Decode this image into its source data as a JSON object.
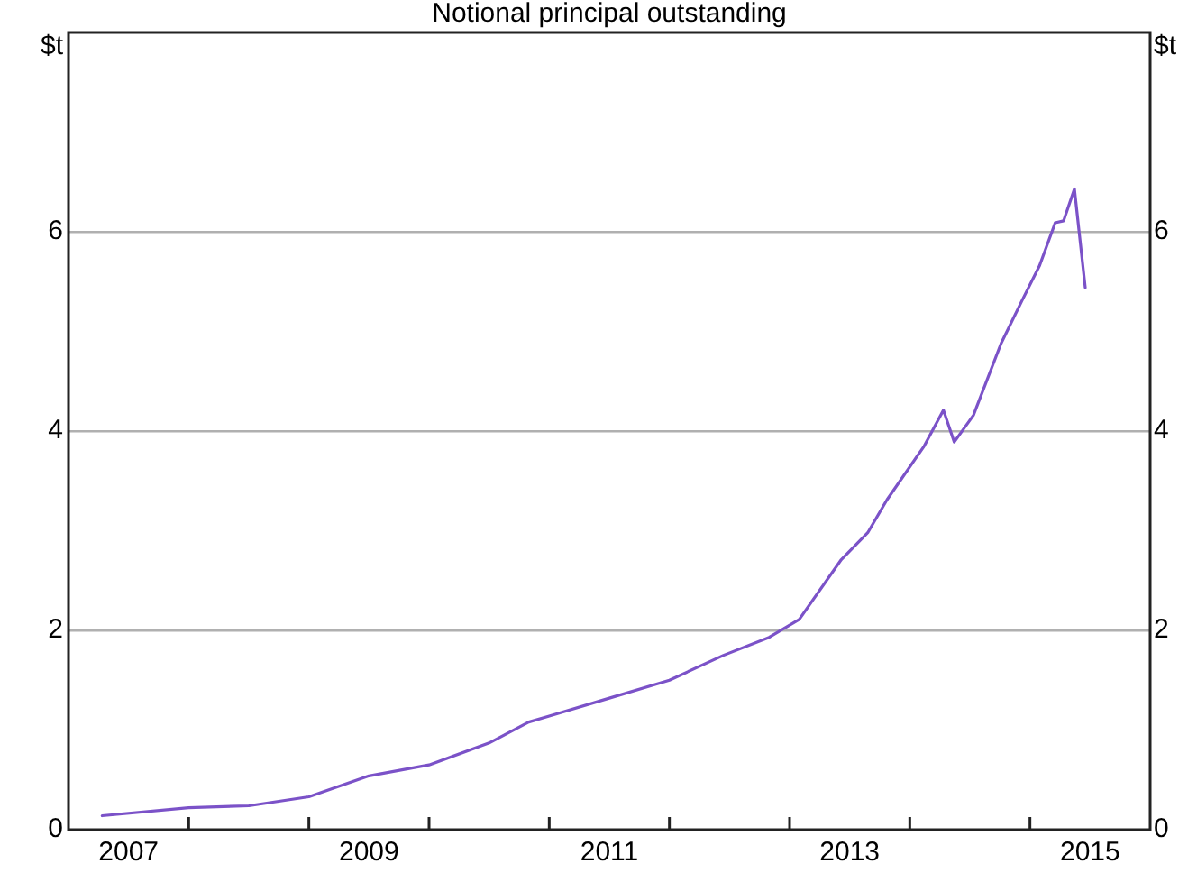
{
  "chart_data": {
    "type": "line",
    "title": "Notional principal outstanding",
    "ylabel": "$t",
    "y2label": "$t",
    "x": [
      2007.28,
      2008.0,
      2008.5,
      2009.0,
      2009.5,
      2010.0,
      2010.5,
      2010.83,
      2011.0,
      2011.5,
      2012.0,
      2012.45,
      2012.83,
      2013.08,
      2013.43,
      2013.65,
      2013.81,
      2014.12,
      2014.28,
      2014.37,
      2014.53,
      2014.76,
      2014.93,
      2015.08,
      2015.21,
      2015.28,
      2015.37,
      2015.46
    ],
    "series": [
      {
        "color": "#7b52c8",
        "values": [
          0.14,
          0.22,
          0.24,
          0.33,
          0.54,
          0.65,
          0.87,
          1.08,
          1.14,
          1.32,
          1.5,
          1.75,
          1.93,
          2.11,
          2.71,
          2.98,
          3.31,
          3.85,
          4.21,
          3.89,
          4.16,
          4.88,
          5.3,
          5.66,
          6.09,
          6.11,
          6.43,
          5.44
        ]
      }
    ],
    "xlim": [
      2007,
      2016
    ],
    "xticks": [
      {
        "value": 2007.5,
        "label": "2007"
      },
      {
        "value": 2008,
        "label": null
      },
      {
        "value": 2009,
        "label": null
      },
      {
        "value": 2009.5,
        "label": "2009"
      },
      {
        "value": 2010,
        "label": null
      },
      {
        "value": 2011,
        "label": null
      },
      {
        "value": 2011.5,
        "label": "2011"
      },
      {
        "value": 2012,
        "label": null
      },
      {
        "value": 2013,
        "label": null
      },
      {
        "value": 2013.5,
        "label": "2013"
      },
      {
        "value": 2014,
        "label": null
      },
      {
        "value": 2015,
        "label": null
      },
      {
        "value": 2015.5,
        "label": "2015"
      }
    ],
    "ylim": [
      0,
      8
    ],
    "yticks": [
      0,
      2,
      4,
      6
    ],
    "y2lim": [
      0,
      8
    ],
    "y2ticks": [
      0,
      2,
      4,
      6
    ],
    "grid": "y",
    "legend": false,
    "marker": "none",
    "line_style": "solid"
  }
}
